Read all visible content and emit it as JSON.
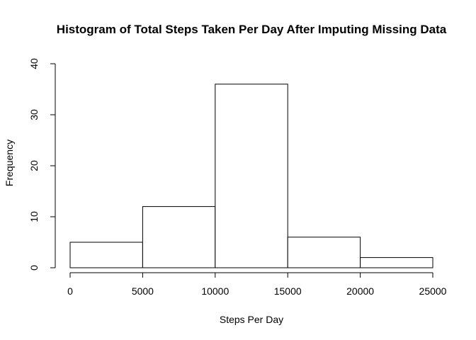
{
  "chart_data": {
    "type": "bar",
    "title": "Histogram of Total Steps Taken Per Day After Imputing Missing Data",
    "xlabel": "Steps Per Day",
    "ylabel": "Frequency",
    "bins": [
      {
        "from": 0,
        "to": 5000,
        "count": 5
      },
      {
        "from": 5000,
        "to": 10000,
        "count": 12
      },
      {
        "from": 10000,
        "to": 15000,
        "count": 36
      },
      {
        "from": 15000,
        "to": 20000,
        "count": 6
      },
      {
        "from": 20000,
        "to": 25000,
        "count": 2
      }
    ],
    "xlim": [
      0,
      25000
    ],
    "ylim": [
      0,
      40
    ],
    "xticks": [
      0,
      5000,
      10000,
      15000,
      20000,
      25000
    ],
    "yticks": [
      0,
      10,
      20,
      30,
      40
    ],
    "xtick_labels": [
      "0",
      "5000",
      "10000",
      "15000",
      "20000",
      "25000"
    ],
    "ytick_labels": [
      "0",
      "10",
      "20",
      "30",
      "40"
    ],
    "grid": false,
    "legend": "none",
    "bar_fill": "#ffffff",
    "bar_stroke": "#000000"
  }
}
